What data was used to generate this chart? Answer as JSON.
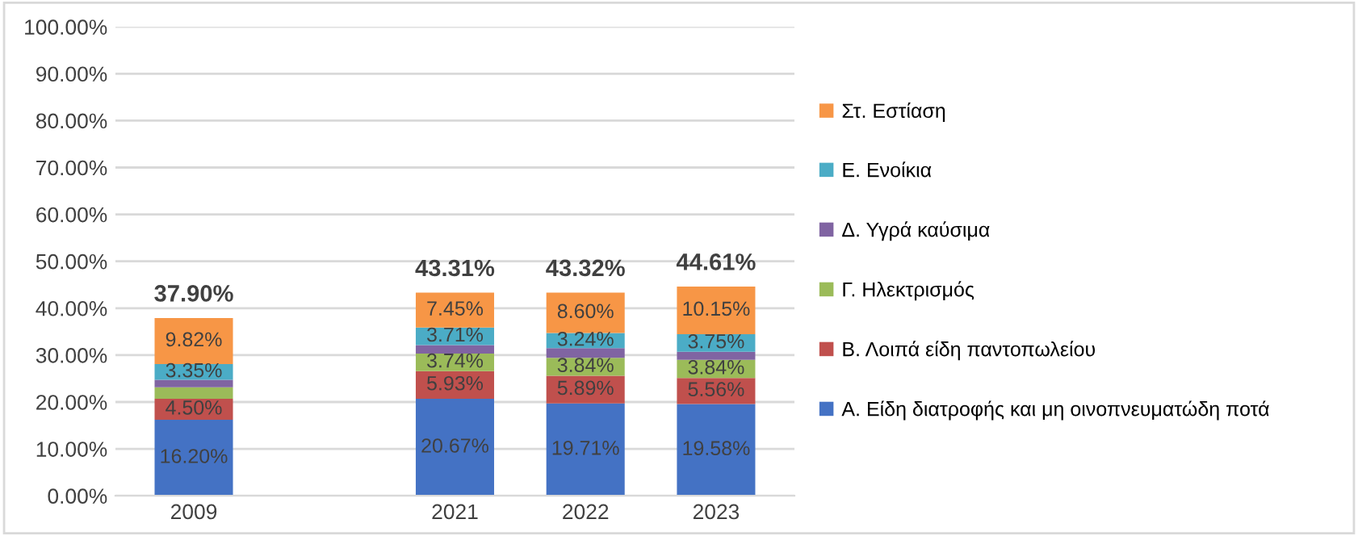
{
  "chart_data": {
    "type": "bar",
    "stacked": true,
    "categories": [
      "2009",
      null,
      "2021",
      "2022",
      "2023"
    ],
    "series": [
      {
        "name": "Α. Είδη διατροφής και μη οινοπνευματώδη ποτά",
        "color": "#4472c4",
        "values": [
          16.2,
          null,
          20.67,
          19.71,
          19.58
        ],
        "value_labels": [
          "16.20%",
          null,
          "20.67%",
          "19.71%",
          "19.58%"
        ]
      },
      {
        "name": "Β. Λοιπά είδη παντοπωλείου",
        "color": "#c0504d",
        "values": [
          4.5,
          null,
          5.93,
          5.89,
          5.56
        ],
        "value_labels": [
          "4.50%",
          null,
          "5.93%",
          "5.89%",
          "5.56%"
        ]
      },
      {
        "name": "Γ. Ηλεκτρισμός",
        "color": "#9bbb59",
        "values": [
          2.44,
          null,
          3.74,
          3.84,
          3.84
        ],
        "value_labels": [
          null,
          null,
          "3.74%",
          "3.84%",
          "3.84%"
        ]
      },
      {
        "name": "Δ. Υγρά καύσιμα",
        "color": "#8064a2",
        "values": [
          1.59,
          null,
          1.81,
          2.04,
          1.73
        ],
        "value_labels": [
          null,
          null,
          null,
          null,
          null
        ]
      },
      {
        "name": "Ε. Ενοίκια",
        "color": "#4bacc6",
        "values": [
          3.35,
          null,
          3.71,
          3.24,
          3.75
        ],
        "value_labels": [
          "3.35%",
          null,
          "3.71%",
          "3.24%",
          "3.75%"
        ]
      },
      {
        "name": "Στ. Εστίαση",
        "color": "#f79646",
        "values": [
          9.82,
          null,
          7.45,
          8.6,
          10.15
        ],
        "value_labels": [
          "9.82%",
          null,
          "7.45%",
          "8.60%",
          "10.15%"
        ]
      }
    ],
    "totals": [
      "37.90%",
      null,
      "43.31%",
      "43.32%",
      "44.61%"
    ],
    "ylim": [
      0,
      100
    ],
    "yticks": [
      {
        "value": 0,
        "label": "0.00%"
      },
      {
        "value": 10,
        "label": "10.00%"
      },
      {
        "value": 20,
        "label": "20.00%"
      },
      {
        "value": 30,
        "label": "30.00%"
      },
      {
        "value": 40,
        "label": "40.00%"
      },
      {
        "value": 50,
        "label": "50.00%"
      },
      {
        "value": 60,
        "label": "60.00%"
      },
      {
        "value": 70,
        "label": "70.00%"
      },
      {
        "value": 80,
        "label": "80.00%"
      },
      {
        "value": 90,
        "label": "90.00%"
      },
      {
        "value": 100,
        "label": "100.00%"
      }
    ],
    "grid": "y",
    "legend": "right"
  }
}
